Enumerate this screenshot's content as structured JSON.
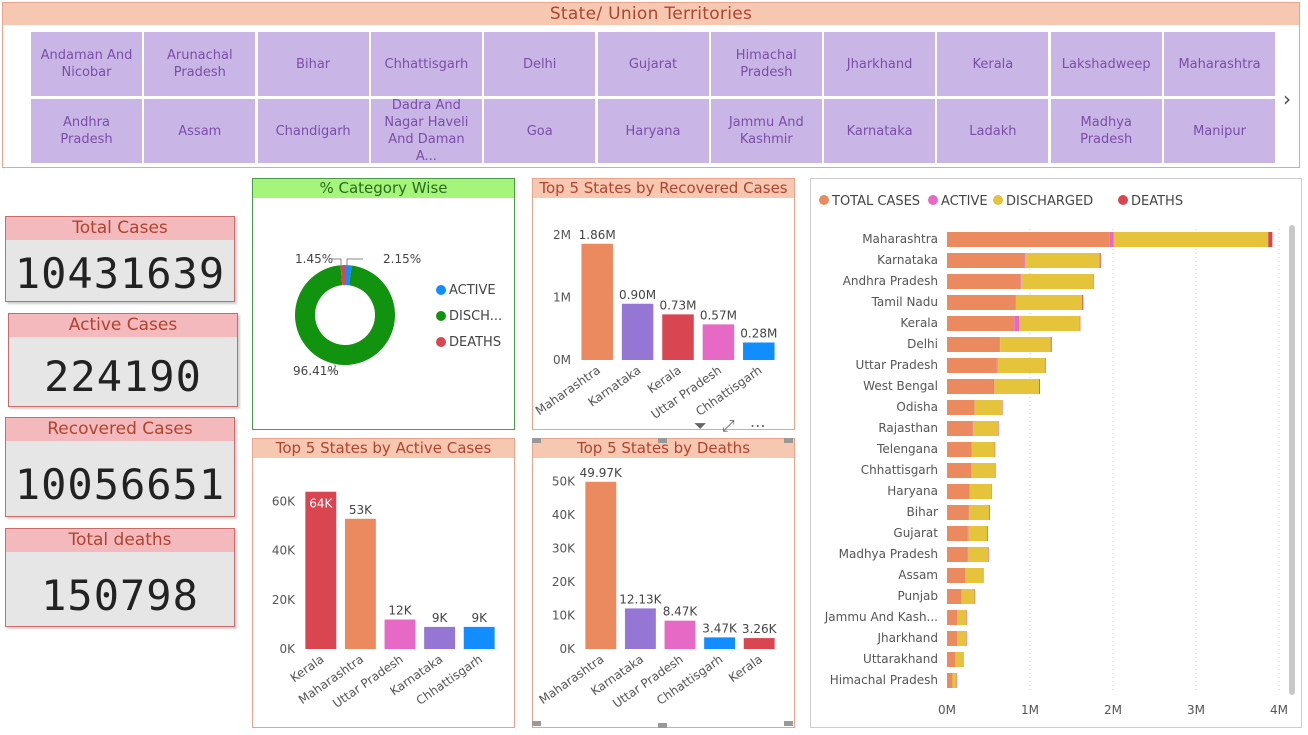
{
  "slicer": {
    "title": "State/ Union Territories",
    "row1": [
      "Andaman And Nicobar",
      "Arunachal Pradesh",
      "Bihar",
      "Chhattisgarh",
      "Delhi",
      "Gujarat",
      "Himachal Pradesh",
      "Jharkhand",
      "Kerala",
      "Lakshadweep",
      "Maharashtra"
    ],
    "row2": [
      "Andhra Pradesh",
      "Assam",
      "Chandigarh",
      "Dadra And Nagar Haveli And Daman A...",
      "Goa",
      "Haryana",
      "Jammu And Kashmir",
      "Karnataka",
      "Ladakh",
      "Madhya Pradesh",
      "Manipur"
    ],
    "next_icon": "chevron-right-icon"
  },
  "kpis": {
    "total_cases": {
      "label": "Total Cases",
      "value": "10431639"
    },
    "active_cases": {
      "label": "Active Cases",
      "value": "224190"
    },
    "recovered_cases": {
      "label": "Recovered Cases",
      "value": "10056651"
    },
    "total_deaths": {
      "label": "Total deaths",
      "value": "150798"
    }
  },
  "colors": {
    "orange": "#eb895f",
    "purple": "#9676d4",
    "red": "#d94652",
    "pink": "#e66ac5",
    "blue": "#118dff",
    "green": "#11930f",
    "yellow": "#e5c33a",
    "accent": "#f6c7b1"
  },
  "toolbar": {
    "icons": [
      "filter-icon",
      "focus-mode-icon",
      "more-options-icon"
    ]
  },
  "chart_data": [
    {
      "type": "pie",
      "title": "% Category Wise",
      "categories": [
        "ACTIVE",
        "DISCH...",
        "DEATHS"
      ],
      "values": [
        2.15,
        96.41,
        1.45
      ],
      "data_labels": [
        "2.15%",
        "96.41%",
        "1.45%"
      ],
      "colors": [
        "#118dff",
        "#11930f",
        "#d94652"
      ],
      "legend": "right"
    },
    {
      "type": "bar",
      "title": "Top 5 States by Recovered Cases",
      "categories": [
        "Maharashtra",
        "Karnataka",
        "Kerala",
        "Uttar Pradesh",
        "Chhattisgarh"
      ],
      "values": [
        1.86,
        0.9,
        0.73,
        0.57,
        0.28
      ],
      "data_labels": [
        "1.86M",
        "0.90M",
        "0.73M",
        "0.57M",
        "0.28M"
      ],
      "colors": [
        "#eb895f",
        "#9676d4",
        "#d94652",
        "#e66ac5",
        "#118dff"
      ],
      "ylim": [
        0,
        2
      ],
      "yticks": [
        "0M",
        "1M",
        "2M"
      ]
    },
    {
      "type": "bar",
      "title": "Top 5 States by Active Cases",
      "categories": [
        "Kerala",
        "Maharashtra",
        "Uttar Pradesh",
        "Karnataka",
        "Chhattisgarh"
      ],
      "values": [
        64,
        53,
        12,
        9,
        9
      ],
      "data_labels": [
        "64K",
        "53K",
        "12K",
        "9K",
        "9K"
      ],
      "colors": [
        "#d94652",
        "#eb895f",
        "#e66ac5",
        "#9676d4",
        "#118dff"
      ],
      "ylim": [
        0,
        70
      ],
      "yticks": [
        "0K",
        "20K",
        "40K",
        "60K"
      ]
    },
    {
      "type": "bar",
      "title": "Top 5 States by Deaths",
      "categories": [
        "Maharashtra",
        "Karnataka",
        "Uttar Pradesh",
        "Chhattisgarh",
        "Kerala"
      ],
      "values": [
        49.97,
        12.13,
        8.47,
        3.47,
        3.26
      ],
      "data_labels": [
        "49.97K",
        "12.13K",
        "8.47K",
        "3.47K",
        "3.26K"
      ],
      "colors": [
        "#eb895f",
        "#9676d4",
        "#e66ac5",
        "#118dff",
        "#d94652"
      ],
      "ylim": [
        0,
        52
      ],
      "yticks": [
        "0K",
        "10K",
        "20K",
        "30K",
        "40K",
        "50K"
      ]
    },
    {
      "type": "bar",
      "orientation": "horizontal-stacked",
      "legend_items": [
        "TOTAL CASES",
        "ACTIVE",
        "DISCHARGED",
        "DEATHS"
      ],
      "legend_colors": [
        "#eb895f",
        "#e66ac5",
        "#e5c33a",
        "#d94652"
      ],
      "categories": [
        "Maharashtra",
        "Karnataka",
        "Andhra Pradesh",
        "Tamil Nadu",
        "Kerala",
        "Delhi",
        "Uttar Pradesh",
        "West Bengal",
        "Odisha",
        "Rajasthan",
        "Telengana",
        "Chhattisgarh",
        "Haryana",
        "Bihar",
        "Gujarat",
        "Madhya Pradesh",
        "Assam",
        "Punjab",
        "Jammu And Kash...",
        "Jharkhand",
        "Uttarakhand",
        "Himachal Pradesh"
      ],
      "series": [
        {
          "name": "TOTAL CASES",
          "values": [
            1.96,
            0.93,
            0.88,
            0.82,
            0.81,
            0.63,
            0.6,
            0.56,
            0.33,
            0.31,
            0.29,
            0.29,
            0.27,
            0.26,
            0.25,
            0.25,
            0.22,
            0.17,
            0.12,
            0.12,
            0.1,
            0.06
          ]
        },
        {
          "name": "ACTIVE",
          "values": [
            0.05,
            0.01,
            0.01,
            0.01,
            0.06,
            0.01,
            0.01,
            0.01,
            0.002,
            0.005,
            0.005,
            0.008,
            0.003,
            0.002,
            0.008,
            0.007,
            0.003,
            0.003,
            0.002,
            0.001,
            0.002,
            0.002
          ]
        },
        {
          "name": "DISCHARGED",
          "values": [
            1.86,
            0.9,
            0.87,
            0.8,
            0.73,
            0.61,
            0.57,
            0.54,
            0.33,
            0.3,
            0.28,
            0.28,
            0.26,
            0.25,
            0.23,
            0.24,
            0.21,
            0.16,
            0.11,
            0.11,
            0.09,
            0.05
          ]
        },
        {
          "name": "DEATHS",
          "values": [
            0.05,
            0.012,
            0.007,
            0.012,
            0.003,
            0.011,
            0.008,
            0.01,
            0.002,
            0.003,
            0.002,
            0.003,
            0.003,
            0.001,
            0.004,
            0.004,
            0.001,
            0.005,
            0.002,
            0.001,
            0.002,
            0.001
          ]
        }
      ],
      "xlim": [
        0,
        4
      ],
      "xticks": [
        "0M",
        "1M",
        "2M",
        "3M",
        "4M"
      ]
    }
  ]
}
